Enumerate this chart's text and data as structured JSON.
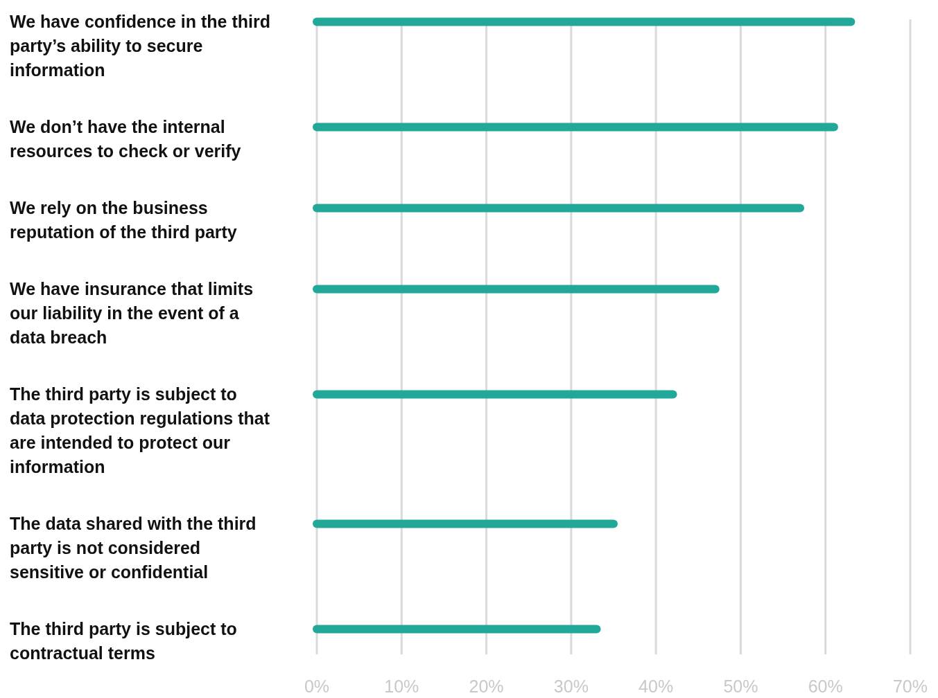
{
  "chart_data": {
    "type": "bar",
    "orientation": "horizontal",
    "categories": [
      "We have confidence in the third party’s ability to secure information",
      "We don’t have the internal resources to check or verify",
      "We rely on the business reputation of the third party",
      "We have insurance that limits our liability in the event of a data breach",
      "The third party is subject to data protection regulations that are intended to protect our information",
      "The data shared with the third party is not considered sensitive or confidential",
      "The third party is subject to contractual terms"
    ],
    "values": [
      63,
      61,
      57,
      47,
      42,
      35,
      33
    ],
    "color": "#22a898",
    "xlim": [
      0,
      70
    ],
    "xticks": [
      {
        "value": 0,
        "label": "0%"
      },
      {
        "value": 10,
        "label": "10%"
      },
      {
        "value": 20,
        "label": "20%"
      },
      {
        "value": 30,
        "label": "30%"
      },
      {
        "value": 40,
        "label": "40%"
      },
      {
        "value": 50,
        "label": "50%"
      },
      {
        "value": 60,
        "label": "60%"
      },
      {
        "value": 70,
        "label": "70%"
      }
    ],
    "grid": "x"
  }
}
